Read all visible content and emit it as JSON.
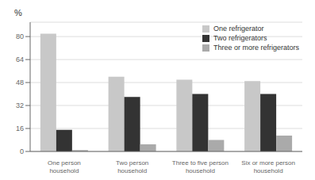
{
  "chart_data": {
    "type": "bar",
    "categories": [
      "One person\nhousehold",
      "Two person\nhousehold",
      "Three to five person\nhousehold",
      "Six or more person\nhousehold"
    ],
    "series": [
      {
        "name": "One refrigerator",
        "values": [
          82,
          52,
          50,
          49
        ],
        "color": "#c8c8c8"
      },
      {
        "name": "Two refrigerators",
        "values": [
          15,
          38,
          40,
          40
        ],
        "color": "#333333"
      },
      {
        "name": "Three or more refrigerators",
        "values": [
          1,
          5,
          8,
          11
        ],
        "color": "#aaaaaa"
      }
    ],
    "ylabel": "%",
    "ylim": [
      0,
      90
    ],
    "yticks": [
      0,
      16,
      32,
      48,
      64,
      80
    ],
    "grid": true,
    "legend": "upper right"
  }
}
